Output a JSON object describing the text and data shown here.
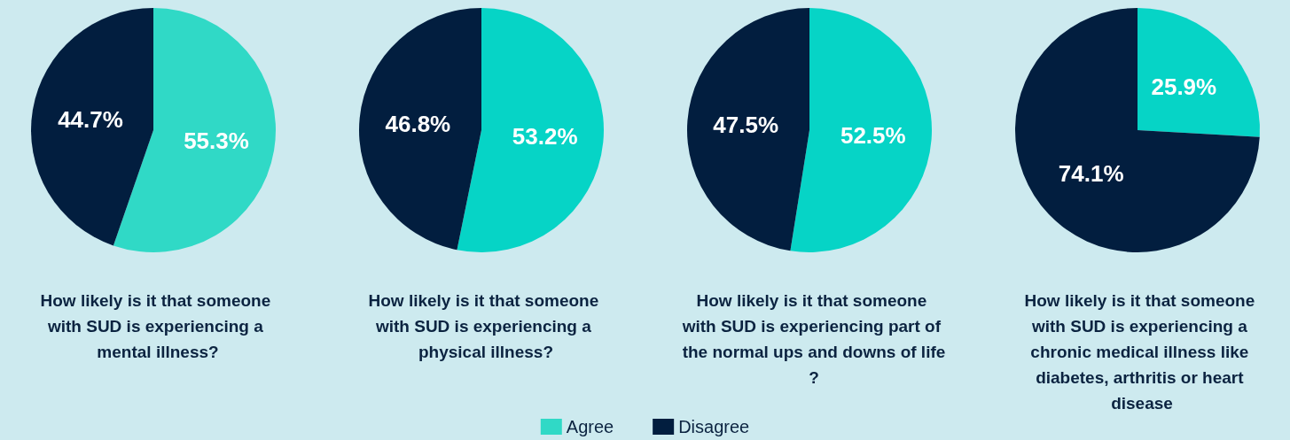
{
  "chart_data": [
    {
      "type": "pie",
      "title": "How likely is it that someone with SUD is experiencing a mental illness?",
      "categories": [
        "Agree",
        "Disagree"
      ],
      "values": [
        55.3,
        44.7
      ],
      "value_labels": [
        "55.3%",
        "44.7%"
      ],
      "colors": [
        "#30d9c6",
        "#021e3f"
      ],
      "legend": "bottom"
    },
    {
      "type": "pie",
      "title": "How likely is it that someone with SUD is experiencing a physical illness?",
      "categories": [
        null,
        null
      ],
      "values": [
        53.2,
        46.8
      ],
      "value_labels": [
        "53.2%",
        "46.8%"
      ],
      "colors": [
        "#06d4c6",
        "#021e3f"
      ]
    },
    {
      "type": "pie",
      "title": "How likely is it that someone with SUD is experiencing part of the normal ups and downs of life?",
      "categories": [
        null,
        null
      ],
      "values": [
        52.5,
        47.5
      ],
      "value_labels": [
        "52.5%",
        "47.5%"
      ],
      "colors": [
        "#06d4c6",
        "#021e3f"
      ]
    },
    {
      "type": "pie",
      "title": "How likely is it that someone with SUD is experiencing a chronic medical illness like diabetes, arthritis or heart disease",
      "categories": [
        null,
        null
      ],
      "values": [
        25.9,
        74.1
      ],
      "value_labels": [
        "25.9%",
        "74.1%"
      ],
      "colors": [
        "#06d4c6",
        "#021e3f"
      ]
    }
  ]
}
